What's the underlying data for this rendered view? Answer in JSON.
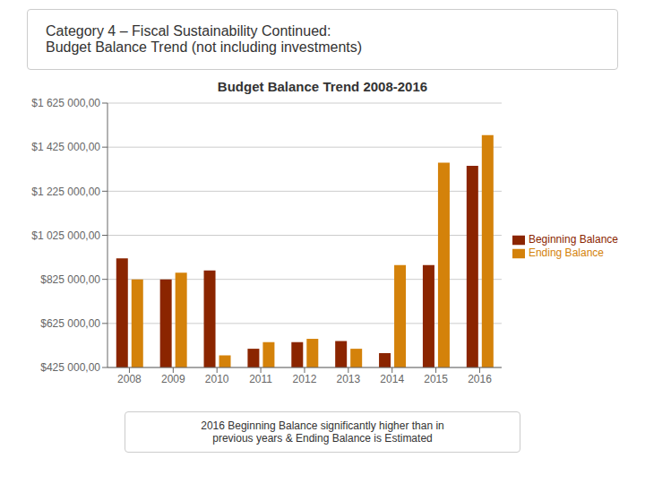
{
  "chart_data": {
    "type": "bar",
    "title": "Budget Balance Trend 2008-2016",
    "annotations": [
      "Category 4 – Fiscal Sustainability Continued:\nBudget Balance Trend (not including investments)",
      "2016 Beginning Balance significantly higher than in\nprevious years & Ending Balance is Estimated"
    ],
    "categories": [
      "2008",
      "2009",
      "2010",
      "2011",
      "2012",
      "2013",
      "2014",
      "2015",
      "2016"
    ],
    "series": [
      {
        "name": "Beginning Balance",
        "color": "#8B2500",
        "values": [
          920000,
          825000,
          865000,
          510000,
          540000,
          545000,
          490000,
          890000,
          1340000
        ]
      },
      {
        "name": "Ending Balance",
        "color": "#D4820A",
        "values": [
          825000,
          855000,
          480000,
          540000,
          555000,
          510000,
          890000,
          1355000,
          1480000
        ]
      }
    ],
    "ylim": [
      425000,
      1625000
    ],
    "yticks": [
      {
        "value": 425000,
        "label": "$425 000,00"
      },
      {
        "value": 625000,
        "label": "$625 000,00"
      },
      {
        "value": 825000,
        "label": "$825 000,00"
      },
      {
        "value": 1025000,
        "label": "$1 025 000,00"
      },
      {
        "value": 1225000,
        "label": "$1 225 000,00"
      },
      {
        "value": 1425000,
        "label": "$1 425 000,00"
      },
      {
        "value": 1625000,
        "label": "$1 625 000,00"
      }
    ],
    "grid": true,
    "legend": "right"
  }
}
